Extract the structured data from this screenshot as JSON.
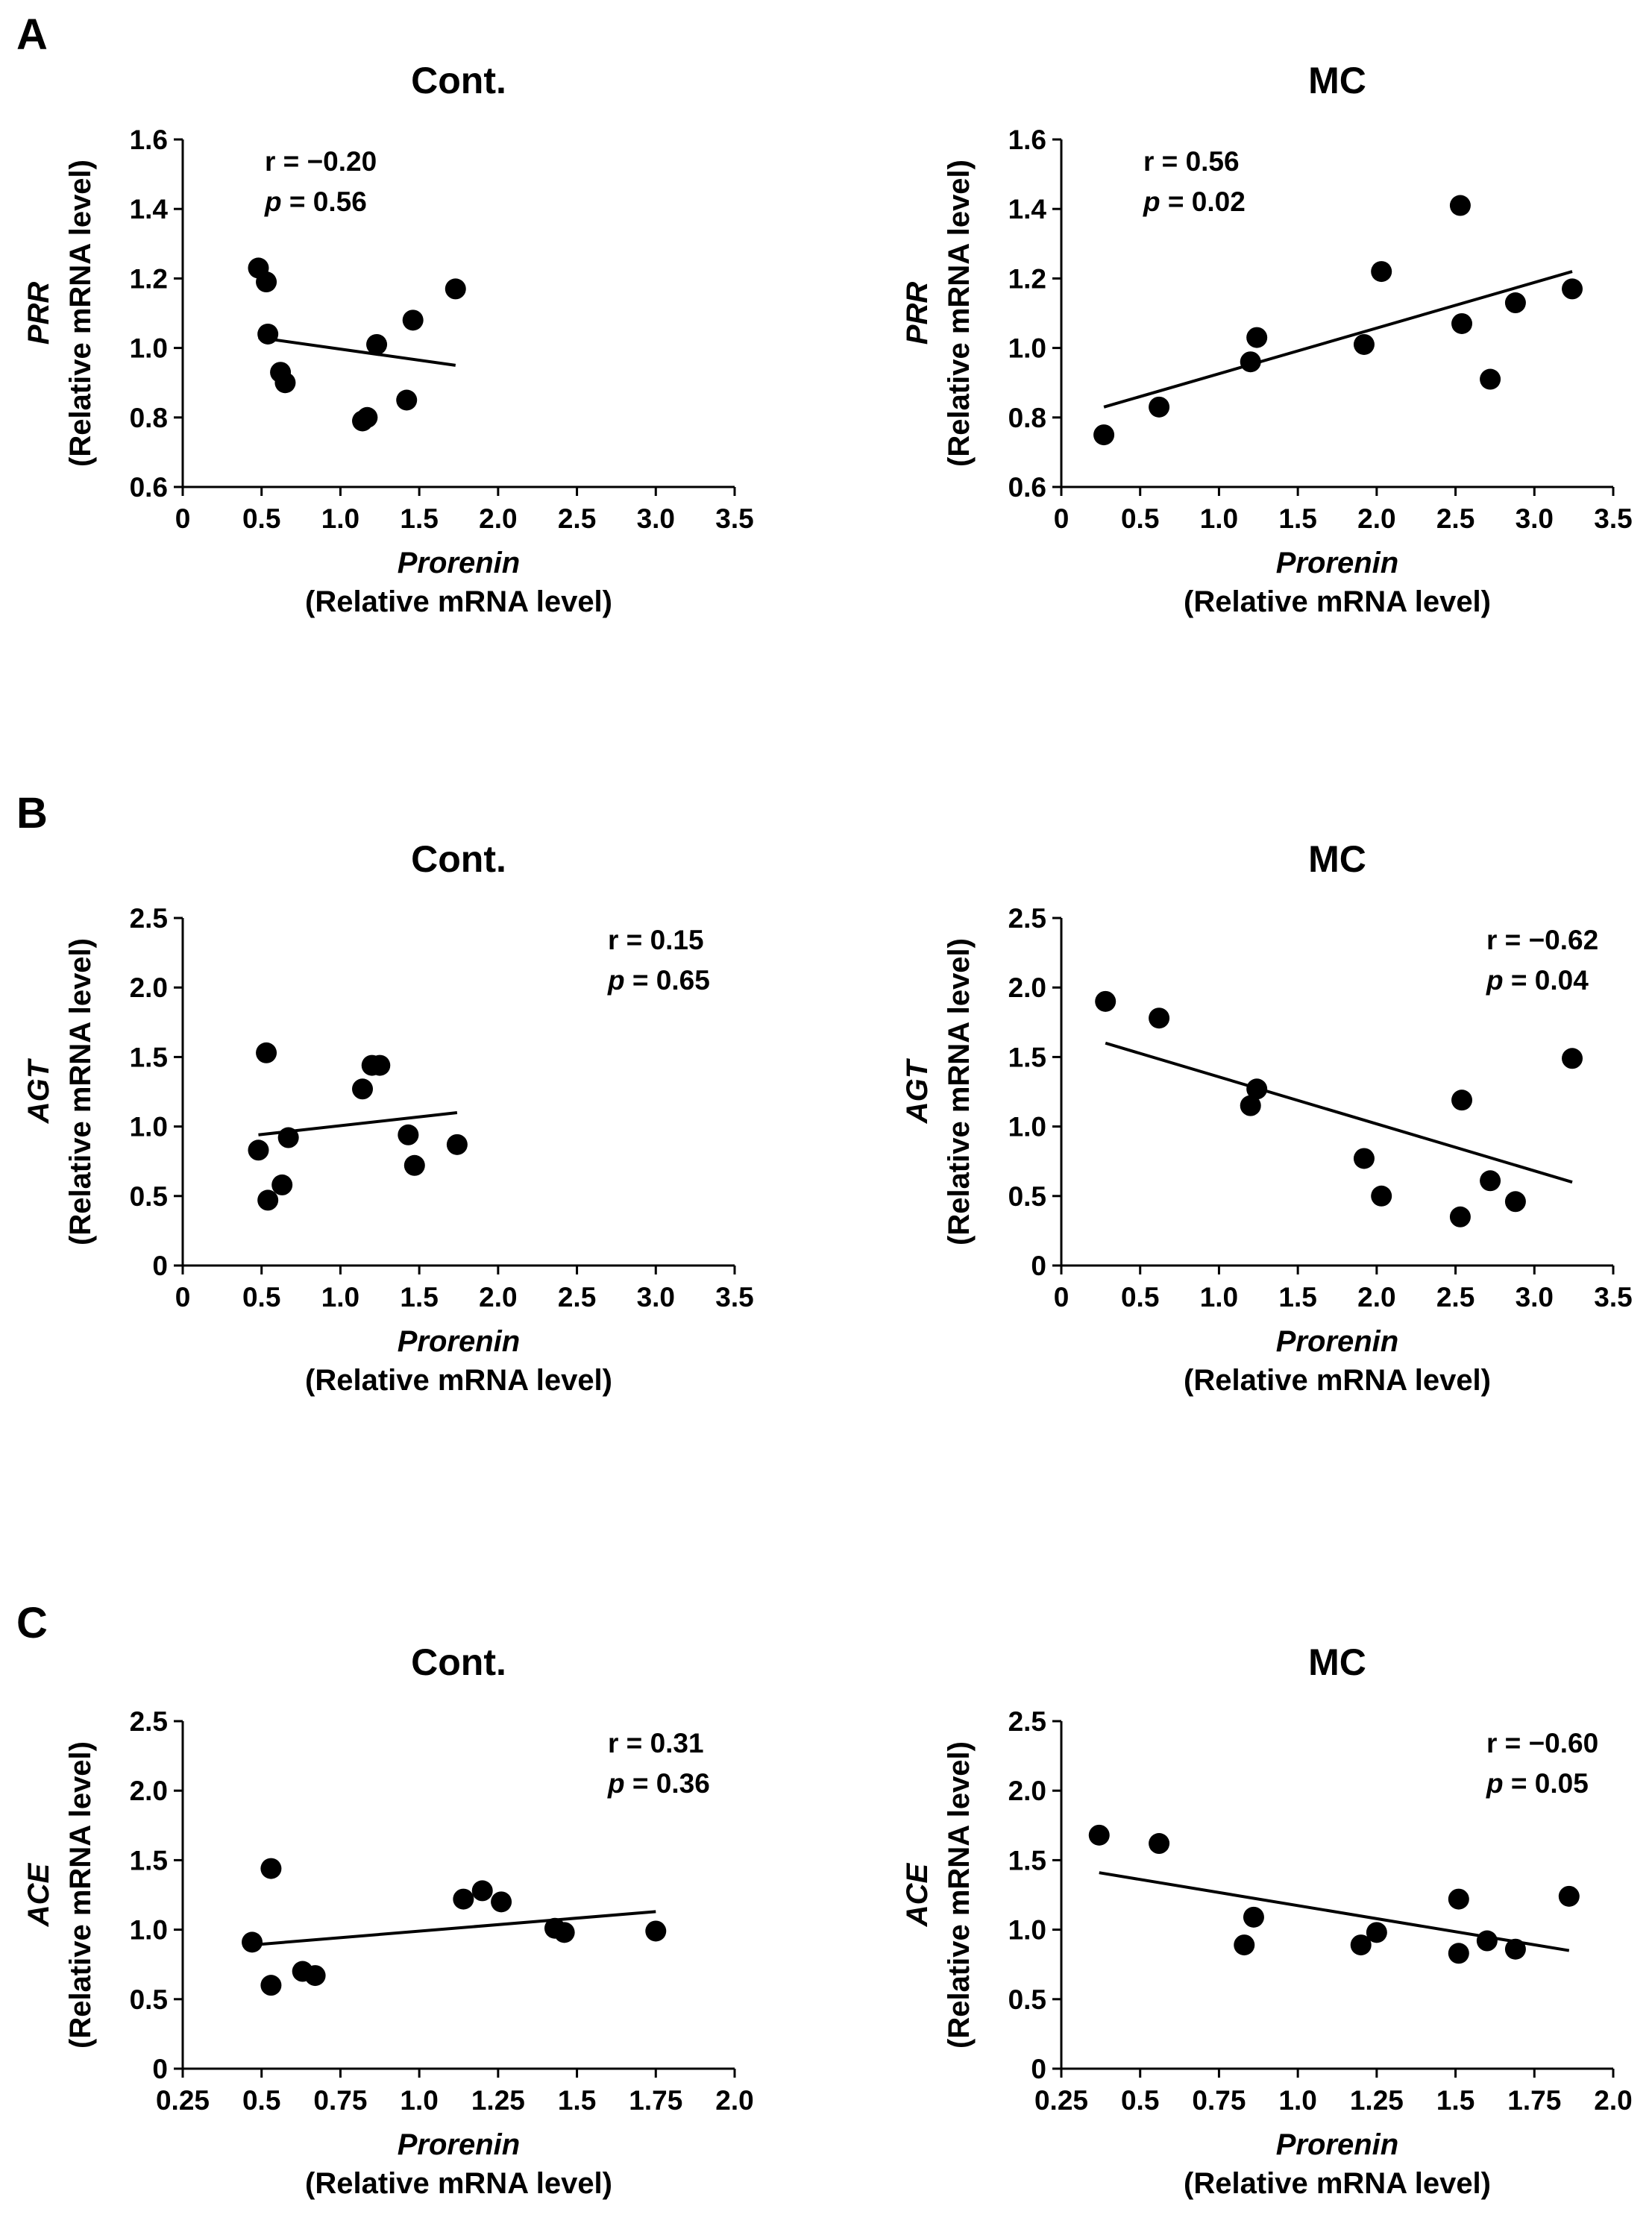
{
  "panels": [
    {
      "letter": "A"
    },
    {
      "letter": "B"
    },
    {
      "letter": "C"
    }
  ],
  "chart_data": [
    {
      "type": "scatter",
      "panel": "A",
      "title": "Cont.",
      "ylabel_gene": "PRR",
      "ylabel_unit": "(Relative mRNA level)",
      "xlabel_gene": "Prorenin",
      "xlabel_unit": "(Relative mRNA level)",
      "xlim": [
        0,
        3.5
      ],
      "ylim": [
        0.6,
        1.6
      ],
      "xticks": [
        "0",
        "0.5",
        "1.0",
        "1.5",
        "2.0",
        "2.5",
        "3.0",
        "3.5"
      ],
      "yticks": [
        "0.6",
        "0.8",
        "1.0",
        "1.2",
        "1.4",
        "1.6"
      ],
      "stats": {
        "r_label": "r = ",
        "r_value": "−0.20",
        "p_label": "p",
        "p_value": " = 0.56",
        "position": "top-left"
      },
      "x": [
        0.48,
        0.53,
        0.54,
        0.62,
        0.65,
        1.14,
        1.17,
        1.23,
        1.42,
        1.46,
        1.73
      ],
      "y": [
        1.23,
        1.19,
        1.04,
        0.93,
        0.9,
        0.79,
        0.8,
        1.01,
        0.85,
        1.08,
        1.17
      ],
      "fit": {
        "x": [
          0.48,
          1.73
        ],
        "y": [
          1.03,
          0.95
        ]
      }
    },
    {
      "type": "scatter",
      "panel": "A",
      "title": "MC",
      "ylabel_gene": "PRR",
      "ylabel_unit": "(Relative mRNA level)",
      "xlabel_gene": "Prorenin",
      "xlabel_unit": "(Relative mRNA level)",
      "xlim": [
        0,
        3.5
      ],
      "ylim": [
        0.6,
        1.6
      ],
      "xticks": [
        "0",
        "0.5",
        "1.0",
        "1.5",
        "2.0",
        "2.5",
        "3.0",
        "3.5"
      ],
      "yticks": [
        "0.6",
        "0.8",
        "1.0",
        "1.2",
        "1.4",
        "1.6"
      ],
      "stats": {
        "r_label": "r = ",
        "r_value": "0.56",
        "p_label": "p",
        "p_value": " = 0.02",
        "position": "top-left"
      },
      "x": [
        0.27,
        0.62,
        1.2,
        1.24,
        1.92,
        2.03,
        2.53,
        2.54,
        2.72,
        2.88,
        3.24
      ],
      "y": [
        0.75,
        0.83,
        0.96,
        1.03,
        1.01,
        1.22,
        1.41,
        1.07,
        0.91,
        1.13,
        1.17
      ],
      "fit": {
        "x": [
          0.27,
          3.24
        ],
        "y": [
          0.83,
          1.22
        ]
      }
    },
    {
      "type": "scatter",
      "panel": "B",
      "title": "Cont.",
      "ylabel_gene": "AGT",
      "ylabel_unit": "(Relative mRNA level)",
      "xlabel_gene": "Prorenin",
      "xlabel_unit": "(Relative mRNA level)",
      "xlim": [
        0,
        3.5
      ],
      "ylim": [
        0,
        2.5
      ],
      "xticks": [
        "0",
        "0.5",
        "1.0",
        "1.5",
        "2.0",
        "2.5",
        "3.0",
        "3.5"
      ],
      "yticks": [
        "0",
        "0.5",
        "1.0",
        "1.5",
        "2.0",
        "2.5"
      ],
      "stats": {
        "r_label": "r = ",
        "r_value": "0.15",
        "p_label": "p",
        "p_value": " = 0.65",
        "position": "top-right"
      },
      "x": [
        0.48,
        0.53,
        0.54,
        0.63,
        0.67,
        1.14,
        1.2,
        1.25,
        1.43,
        1.47,
        1.74
      ],
      "y": [
        0.83,
        1.53,
        0.47,
        0.58,
        0.92,
        1.27,
        1.44,
        1.44,
        0.94,
        0.72,
        0.87
      ],
      "fit": {
        "x": [
          0.48,
          1.74
        ],
        "y": [
          0.94,
          1.1
        ]
      }
    },
    {
      "type": "scatter",
      "panel": "B",
      "title": "MC",
      "ylabel_gene": "AGT",
      "ylabel_unit": "(Relative mRNA level)",
      "xlabel_gene": "Prorenin",
      "xlabel_unit": "(Relative mRNA level)",
      "xlim": [
        0,
        3.5
      ],
      "ylim": [
        0,
        2.5
      ],
      "xticks": [
        "0",
        "0.5",
        "1.0",
        "1.5",
        "2.0",
        "2.5",
        "3.0",
        "3.5"
      ],
      "yticks": [
        "0",
        "0.5",
        "1.0",
        "1.5",
        "2.0",
        "2.5"
      ],
      "stats": {
        "r_label": "r = ",
        "r_value": "−0.62",
        "p_label": "p",
        "p_value": " = 0.04",
        "position": "top-right"
      },
      "x": [
        0.28,
        0.62,
        1.2,
        1.24,
        1.92,
        2.03,
        2.53,
        2.54,
        2.72,
        2.88,
        3.24
      ],
      "y": [
        1.9,
        1.78,
        1.15,
        1.27,
        0.77,
        0.5,
        0.35,
        1.19,
        0.61,
        0.46,
        1.49
      ],
      "fit": {
        "x": [
          0.28,
          3.24
        ],
        "y": [
          1.6,
          0.6
        ]
      }
    },
    {
      "type": "scatter",
      "panel": "C",
      "title": "Cont.",
      "ylabel_gene": "ACE",
      "ylabel_unit": "(Relative mRNA level)",
      "xlabel_gene": "Prorenin",
      "xlabel_unit": "(Relative mRNA level)",
      "xlim": [
        0.25,
        2.0
      ],
      "ylim": [
        0,
        2.5
      ],
      "xticks": [
        "0.25",
        "0.5",
        "0.75",
        "1.0",
        "1.25",
        "1.5",
        "1.75",
        "2.0"
      ],
      "yticks": [
        "0",
        "0.5",
        "1.0",
        "1.5",
        "2.0",
        "2.5"
      ],
      "stats": {
        "r_label": "r = ",
        "r_value": "0.31",
        "p_label": "p",
        "p_value": " = 0.36",
        "position": "top-right"
      },
      "x": [
        0.47,
        0.53,
        0.53,
        0.63,
        0.67,
        1.14,
        1.2,
        1.26,
        1.43,
        1.46,
        1.75
      ],
      "y": [
        0.91,
        1.44,
        0.6,
        0.7,
        0.67,
        1.22,
        1.28,
        1.2,
        1.01,
        0.98,
        0.99
      ],
      "fit": {
        "x": [
          0.47,
          1.75
        ],
        "y": [
          0.89,
          1.13
        ]
      }
    },
    {
      "type": "scatter",
      "panel": "C",
      "title": "MC",
      "ylabel_gene": "ACE",
      "ylabel_unit": "(Relative mRNA level)",
      "xlabel_gene": "Prorenin",
      "xlabel_unit": "(Relative mRNA level)",
      "xlim": [
        0.25,
        2.0
      ],
      "ylim": [
        0,
        2.5
      ],
      "xticks": [
        "0.25",
        "0.5",
        "0.75",
        "1.0",
        "1.25",
        "1.5",
        "1.75",
        "2.0"
      ],
      "yticks": [
        "0",
        "0.5",
        "1.0",
        "1.5",
        "2.0",
        "2.5"
      ],
      "stats": {
        "r_label": "r = ",
        "r_value": "−0.60",
        "p_label": "p",
        "p_value": " = 0.05",
        "position": "top-right"
      },
      "x": [
        0.37,
        0.56,
        0.83,
        0.86,
        1.2,
        1.25,
        1.51,
        1.51,
        1.6,
        1.69,
        1.86
      ],
      "y": [
        1.68,
        1.62,
        0.89,
        1.09,
        0.89,
        0.98,
        0.83,
        1.22,
        0.92,
        0.86,
        1.24
      ],
      "fit": {
        "x": [
          0.37,
          1.86
        ],
        "y": [
          1.41,
          0.85
        ]
      }
    }
  ]
}
